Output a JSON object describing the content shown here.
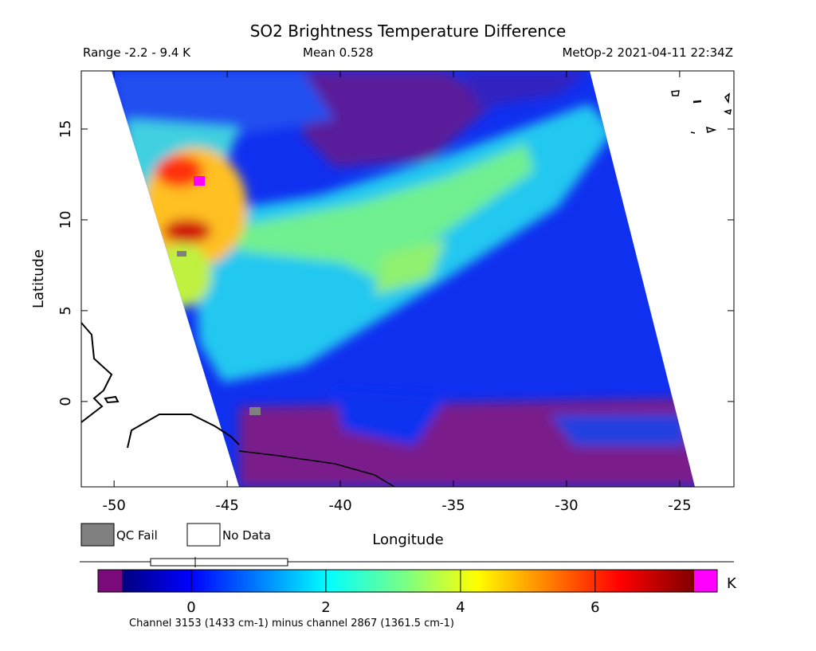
{
  "header": {
    "title": "SO2 Brightness Temperature Difference",
    "range": "Range -2.2 - 9.4 K",
    "mean": "Mean 0.528",
    "source": "MetOp-2 2021-04-11 22:34Z"
  },
  "map": {
    "xlabel": "Longitude",
    "ylabel": "Latitude",
    "xlim": [
      -51.45,
      -22.6
    ],
    "ylim": [
      -4.7,
      18.2
    ],
    "xticks": [
      -50,
      -45,
      -40,
      -35,
      -30,
      -25
    ],
    "yticks": [
      0,
      5,
      10,
      15
    ]
  },
  "legend": {
    "items": [
      "QC Fail",
      "No Data"
    ]
  },
  "colorbar": {
    "lim": [
      -1.03,
      7.47
    ],
    "ticks": [
      0,
      2,
      4,
      6
    ],
    "unit": "K",
    "note": "Channel 3153 (1433 cm-1) minus channel 2867 (1361.5 cm-1)"
  }
}
